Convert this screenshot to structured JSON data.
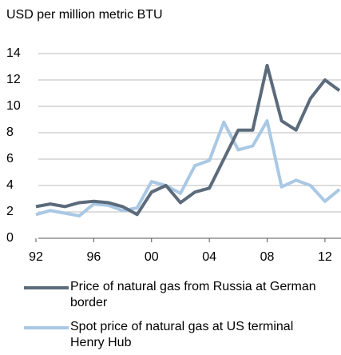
{
  "chart_data": {
    "type": "line",
    "title": "USD per million metric BTU",
    "x": [
      1992,
      1993,
      1994,
      1995,
      1996,
      1997,
      1998,
      1999,
      2000,
      2001,
      2002,
      2003,
      2004,
      2005,
      2006,
      2007,
      2008,
      2009,
      2010,
      2011,
      2012,
      2013
    ],
    "series": [
      {
        "name": "Price of natural gas from Russia at German border",
        "color": "#5b6b7b",
        "values": [
          2.4,
          2.6,
          2.4,
          2.7,
          2.8,
          2.7,
          2.4,
          1.8,
          3.5,
          4.0,
          2.7,
          3.5,
          3.8,
          6.0,
          8.2,
          8.2,
          13.1,
          8.9,
          8.2,
          10.6,
          12.0,
          11.2
        ]
      },
      {
        "name": "Spot price of natural gas at US terminal Henry Hub",
        "color": "#a9c8e4",
        "values": [
          1.8,
          2.1,
          1.9,
          1.7,
          2.6,
          2.5,
          2.1,
          2.3,
          4.3,
          4.0,
          3.4,
          5.5,
          5.9,
          8.8,
          6.7,
          7.0,
          8.9,
          3.9,
          4.4,
          4.0,
          2.8,
          3.7
        ]
      }
    ],
    "xlim": [
      1992,
      2013
    ],
    "xticks": [
      {
        "value": 1992,
        "label": "92"
      },
      {
        "value": 1996,
        "label": "96"
      },
      {
        "value": 2000,
        "label": "00"
      },
      {
        "value": 2004,
        "label": "04"
      },
      {
        "value": 2008,
        "label": "08"
      },
      {
        "value": 2012,
        "label": "12"
      }
    ],
    "ylim": [
      0,
      14
    ],
    "yticks": [
      0,
      2,
      4,
      6,
      8,
      10,
      12,
      14
    ],
    "grid": true
  }
}
